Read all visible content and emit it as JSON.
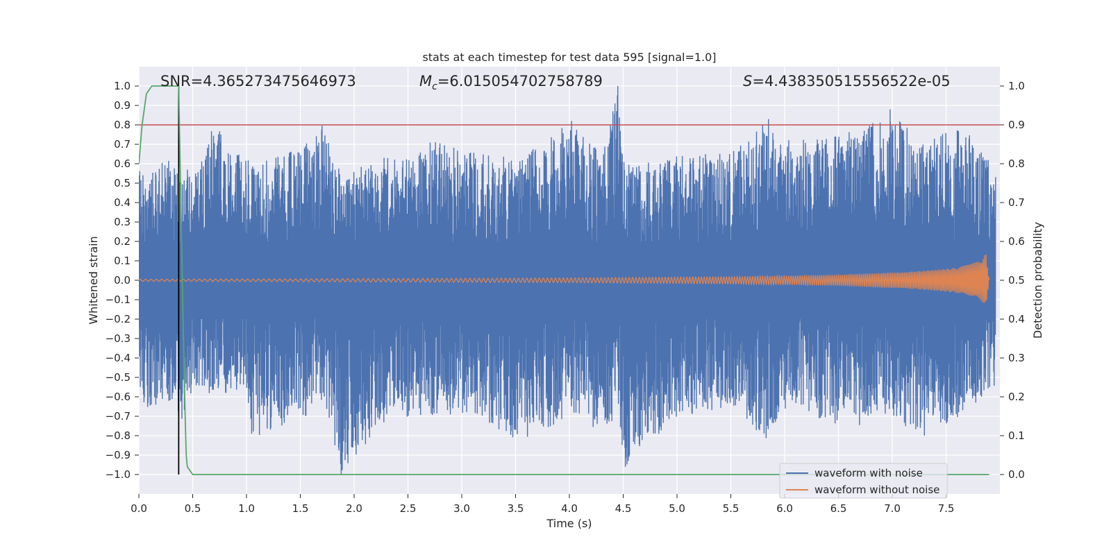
{
  "chart_data": {
    "type": "line",
    "title": "stats at each timestep for test data 595 [signal=1.0]",
    "xlabel": "Time (s)",
    "ylabel": "Whitened strain",
    "y2label": "Detection probability",
    "xlim": [
      0.0,
      8.0
    ],
    "ylim": [
      -1.1,
      1.1
    ],
    "y2lim": [
      -0.05,
      1.05
    ],
    "xticks": [
      "0.0",
      "0.5",
      "1.0",
      "1.5",
      "2.0",
      "2.5",
      "3.0",
      "3.5",
      "4.0",
      "4.5",
      "5.0",
      "5.5",
      "6.0",
      "6.5",
      "7.0",
      "7.5"
    ],
    "xtick_values": [
      0.0,
      0.5,
      1.0,
      1.5,
      2.0,
      2.5,
      3.0,
      3.5,
      4.0,
      4.5,
      5.0,
      5.5,
      6.0,
      6.5,
      7.0,
      7.5
    ],
    "yticks": [
      "1.0",
      "0.9",
      "0.8",
      "0.7",
      "0.6",
      "0.5",
      "0.4",
      "0.3",
      "0.2",
      "0.1",
      "0.0",
      "−0.1",
      "−0.2",
      "−0.3",
      "−0.4",
      "−0.5",
      "−0.6",
      "−0.7",
      "−0.8",
      "−0.9",
      "−1.0"
    ],
    "ytick_values": [
      1.0,
      0.9,
      0.8,
      0.7,
      0.6,
      0.5,
      0.4,
      0.3,
      0.2,
      0.1,
      0.0,
      -0.1,
      -0.2,
      -0.3,
      -0.4,
      -0.5,
      -0.6,
      -0.7,
      -0.8,
      -0.9,
      -1.0
    ],
    "y2ticks": [
      "1.0",
      "0.9",
      "0.8",
      "0.7",
      "0.6",
      "0.5",
      "0.4",
      "0.3",
      "0.2",
      "0.1",
      "0.0"
    ],
    "y2tick_values": [
      1.0,
      0.9,
      0.8,
      0.7,
      0.6,
      0.5,
      0.4,
      0.3,
      0.2,
      0.1,
      0.0
    ],
    "annotations": {
      "snr": "SNR=4.365273475646973",
      "mc_symbol": "M",
      "mc_sub": "c",
      "mc_value": "=6.015054702758789",
      "s_symbol": "S",
      "s_value": "=4.438350515556522e-05"
    },
    "series": [
      {
        "name": "waveform with noise",
        "color": "#4c72b0",
        "description": "whitened noisy strain, roughly within ±0.4 with spikes up to +1.0 (t≈4.45) and down to -1.0 (t≈1.88)",
        "envelope_points": [
          [
            0.0,
            0.63,
            -0.61
          ],
          [
            0.1,
            0.55,
            -0.68
          ],
          [
            0.25,
            0.63,
            -0.6
          ],
          [
            0.4,
            0.55,
            -0.76
          ],
          [
            0.55,
            0.61,
            -0.55
          ],
          [
            0.7,
            0.8,
            -0.6
          ],
          [
            1.0,
            0.65,
            -0.55
          ],
          [
            1.05,
            0.6,
            -0.81
          ],
          [
            1.5,
            0.68,
            -0.73
          ],
          [
            1.7,
            0.8,
            -0.62
          ],
          [
            1.88,
            0.55,
            -1.0
          ],
          [
            2.4,
            0.66,
            -0.65
          ],
          [
            2.55,
            0.62,
            -0.75
          ],
          [
            2.7,
            0.72,
            -0.7
          ],
          [
            3.1,
            0.66,
            -0.68
          ],
          [
            3.5,
            0.63,
            -0.84
          ],
          [
            4.02,
            0.82,
            -0.7
          ],
          [
            4.3,
            0.65,
            -0.78
          ],
          [
            4.45,
            1.0,
            -0.7
          ],
          [
            4.52,
            0.6,
            -0.96
          ],
          [
            5.0,
            0.64,
            -0.7
          ],
          [
            5.5,
            0.66,
            -0.66
          ],
          [
            5.85,
            0.83,
            -0.84
          ],
          [
            6.05,
            0.72,
            -0.62
          ],
          [
            6.4,
            0.74,
            -0.74
          ],
          [
            6.65,
            0.78,
            -0.76
          ],
          [
            6.98,
            0.88,
            -0.7
          ],
          [
            7.1,
            0.83,
            -0.75
          ],
          [
            7.3,
            0.71,
            -0.8
          ],
          [
            7.65,
            0.8,
            -0.7
          ],
          [
            7.92,
            0.6,
            -0.55
          ]
        ]
      },
      {
        "name": "waveform without noise",
        "color": "#dd8452",
        "description": "chirp signal, amplitude growing from ~0.005 to ~0.1 near t=7.85 s then ringdown",
        "amplitude_points": [
          [
            0.0,
            0.005
          ],
          [
            2.0,
            0.008
          ],
          [
            4.0,
            0.012
          ],
          [
            5.5,
            0.018
          ],
          [
            6.5,
            0.028
          ],
          [
            7.2,
            0.045
          ],
          [
            7.6,
            0.065
          ],
          [
            7.82,
            0.1
          ],
          [
            7.87,
            0.14
          ],
          [
            7.9,
            0.0
          ]
        ]
      },
      {
        "name": "detection probability",
        "color": "#55a868",
        "axis": "right",
        "x": [
          0.0,
          0.03,
          0.07,
          0.12,
          0.2,
          0.3,
          0.37,
          0.38,
          0.41,
          0.43,
          0.44,
          0.45,
          0.5,
          7.9
        ],
        "values": [
          0.8,
          0.9,
          0.98,
          1.0,
          1.0,
          1.0,
          1.0,
          0.85,
          0.4,
          0.15,
          0.05,
          0.02,
          0.0,
          0.0
        ]
      }
    ],
    "reference_lines": [
      {
        "name": "threshold",
        "axis": "right",
        "value": 0.9,
        "color": "#c44e52"
      },
      {
        "name": "detection-time",
        "axis": "x",
        "value": 0.37,
        "color": "#000000"
      }
    ],
    "legend": {
      "position": "lower-right",
      "entries": [
        "waveform with noise",
        "waveform without noise"
      ]
    },
    "background_color": "#eaeaf2",
    "grid": true
  }
}
